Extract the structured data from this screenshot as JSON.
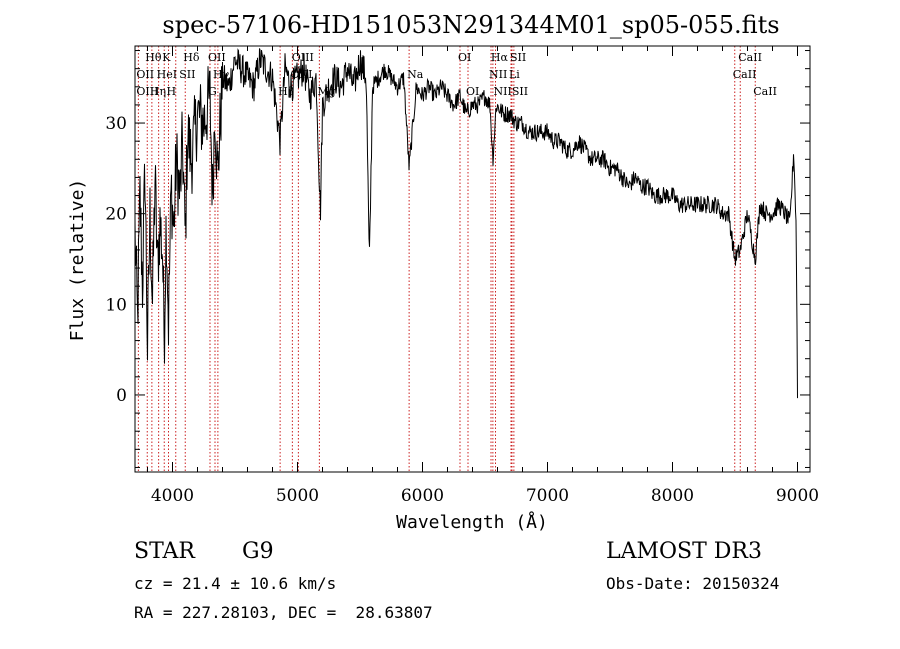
{
  "chart_data": {
    "type": "line",
    "title": "spec-57106-HD151053N291344M01_sp05-055.fits",
    "xlabel": "Wavelength (Å)",
    "ylabel": "Flux (relative)",
    "xlim": [
      3700,
      9100
    ],
    "ylim": [
      -8.5,
      38.5
    ],
    "xticks": [
      4000,
      5000,
      6000,
      7000,
      8000,
      9000
    ],
    "yticks": [
      0,
      10,
      20,
      30
    ],
    "grid": false,
    "series": [
      {
        "name": "spectrum",
        "x": [
          3700,
          3720,
          3740,
          3760,
          3780,
          3800,
          3820,
          3840,
          3860,
          3880,
          3900,
          3920,
          3934,
          3950,
          3968,
          3990,
          4010,
          4030,
          4060,
          4080,
          4102,
          4120,
          4150,
          4200,
          4250,
          4300,
          4320,
          4340,
          4360,
          4400,
          4450,
          4500,
          4550,
          4600,
          4650,
          4700,
          4750,
          4800,
          4861,
          4900,
          4950,
          5000,
          5050,
          5100,
          5150,
          5172,
          5183,
          5200,
          5250,
          5300,
          5350,
          5400,
          5450,
          5500,
          5550,
          5575,
          5600,
          5650,
          5700,
          5750,
          5800,
          5850,
          5893,
          5950,
          6000,
          6050,
          6100,
          6150,
          6200,
          6250,
          6300,
          6350,
          6400,
          6450,
          6500,
          6540,
          6563,
          6590,
          6650,
          6700,
          6750,
          6800,
          6850,
          6900,
          6950,
          7000,
          7050,
          7100,
          7150,
          7200,
          7250,
          7300,
          7350,
          7400,
          7450,
          7500,
          7550,
          7600,
          7650,
          7700,
          7750,
          7800,
          7850,
          7900,
          7950,
          8000,
          8050,
          8100,
          8150,
          8200,
          8250,
          8300,
          8350,
          8400,
          8450,
          8498,
          8542,
          8600,
          8662,
          8700,
          8750,
          8800,
          8850,
          8900,
          8940,
          8970,
          8990,
          9000
        ],
        "values": [
          18,
          8,
          22,
          12,
          25,
          5,
          20,
          10,
          24,
          14,
          19,
          16,
          6,
          20,
          8,
          23,
          18,
          26,
          22,
          28,
          17,
          29,
          26,
          31,
          30,
          33,
          22,
          32,
          24,
          35,
          34,
          37,
          36,
          35,
          34,
          37,
          36,
          35,
          28,
          36,
          34,
          35,
          36,
          33,
          35,
          25,
          20,
          32,
          34,
          35,
          34,
          36,
          34,
          37,
          35,
          14,
          34,
          35,
          36,
          35,
          34,
          35,
          25,
          34,
          33,
          34,
          33,
          34,
          33,
          32,
          33,
          31,
          32,
          32,
          33,
          32,
          26,
          32,
          31,
          31,
          30,
          30,
          29,
          29,
          29,
          29,
          28,
          28,
          27,
          27,
          28,
          27,
          26,
          26,
          26,
          25,
          25,
          24,
          23,
          24,
          23,
          23,
          22,
          22,
          22,
          22,
          21,
          21,
          21,
          21,
          21,
          21,
          21,
          20,
          20,
          15,
          16,
          20,
          15,
          21,
          20,
          20,
          21,
          20,
          19,
          27,
          18,
          0
        ]
      }
    ],
    "lines": [
      3727,
      3798,
      3835,
      3889,
      3934,
      3968,
      4026,
      4102,
      4300,
      4340,
      4363,
      4861,
      4959,
      5007,
      5175,
      5893,
      6300,
      6364,
      6548,
      6563,
      6584,
      6708,
      6716,
      6731,
      8498,
      8542,
      8662
    ],
    "annotations": [
      {
        "text": "Hθ",
        "x": 3798,
        "row": 1
      },
      {
        "text": "K",
        "x": 3934,
        "row": 1
      },
      {
        "text": "Hδ",
        "x": 4102,
        "row": 1
      },
      {
        "text": "OII",
        "x": 4300,
        "row": 1
      },
      {
        "text": "OIII",
        "x": 4970,
        "row": 1
      },
      {
        "text": "OI",
        "x": 6300,
        "row": 1
      },
      {
        "text": "Hα",
        "x": 6563,
        "row": 1
      },
      {
        "text": "SII",
        "x": 6716,
        "row": 1
      },
      {
        "text": "CaII",
        "x": 8542,
        "row": 1
      },
      {
        "text": "OII",
        "x": 3727,
        "row": 2
      },
      {
        "text": "HeI",
        "x": 3889,
        "row": 2
      },
      {
        "text": "SII",
        "x": 4070,
        "row": 2
      },
      {
        "text": "Hγ",
        "x": 4340,
        "row": 2
      },
      {
        "text": "OIII",
        "x": 4959,
        "row": 2
      },
      {
        "text": "Na",
        "x": 5893,
        "row": 2
      },
      {
        "text": "NII",
        "x": 6548,
        "row": 2
      },
      {
        "text": "Li",
        "x": 6708,
        "row": 2
      },
      {
        "text": "CaII",
        "x": 8498,
        "row": 2
      },
      {
        "text": "OIII",
        "x": 3727,
        "row": 3
      },
      {
        "text": "Hη",
        "x": 3835,
        "row": 3
      },
      {
        "text": "H",
        "x": 3968,
        "row": 3
      },
      {
        "text": "G",
        "x": 4300,
        "row": 3
      },
      {
        "text": "Hβ",
        "x": 4861,
        "row": 3
      },
      {
        "text": "Mg",
        "x": 5175,
        "row": 3
      },
      {
        "text": "OI",
        "x": 6364,
        "row": 3
      },
      {
        "text": "NII",
        "x": 6584,
        "row": 3
      },
      {
        "text": "SII",
        "x": 6731,
        "row": 3
      },
      {
        "text": "CaII",
        "x": 8662,
        "row": 3
      }
    ]
  },
  "info": {
    "object_class": "STAR",
    "subclass": "G9",
    "cz": "cz = 21.4 ± 10.6 km/s",
    "coords": "RA = 227.28103, DEC =  28.63807",
    "survey": "LAMOST DR3",
    "obs_date": "Obs-Date: 20150324"
  },
  "colors": {
    "line_marker": "#cc2222",
    "spectrum": "#000000",
    "axis": "#000000",
    "background": "#ffffff"
  }
}
